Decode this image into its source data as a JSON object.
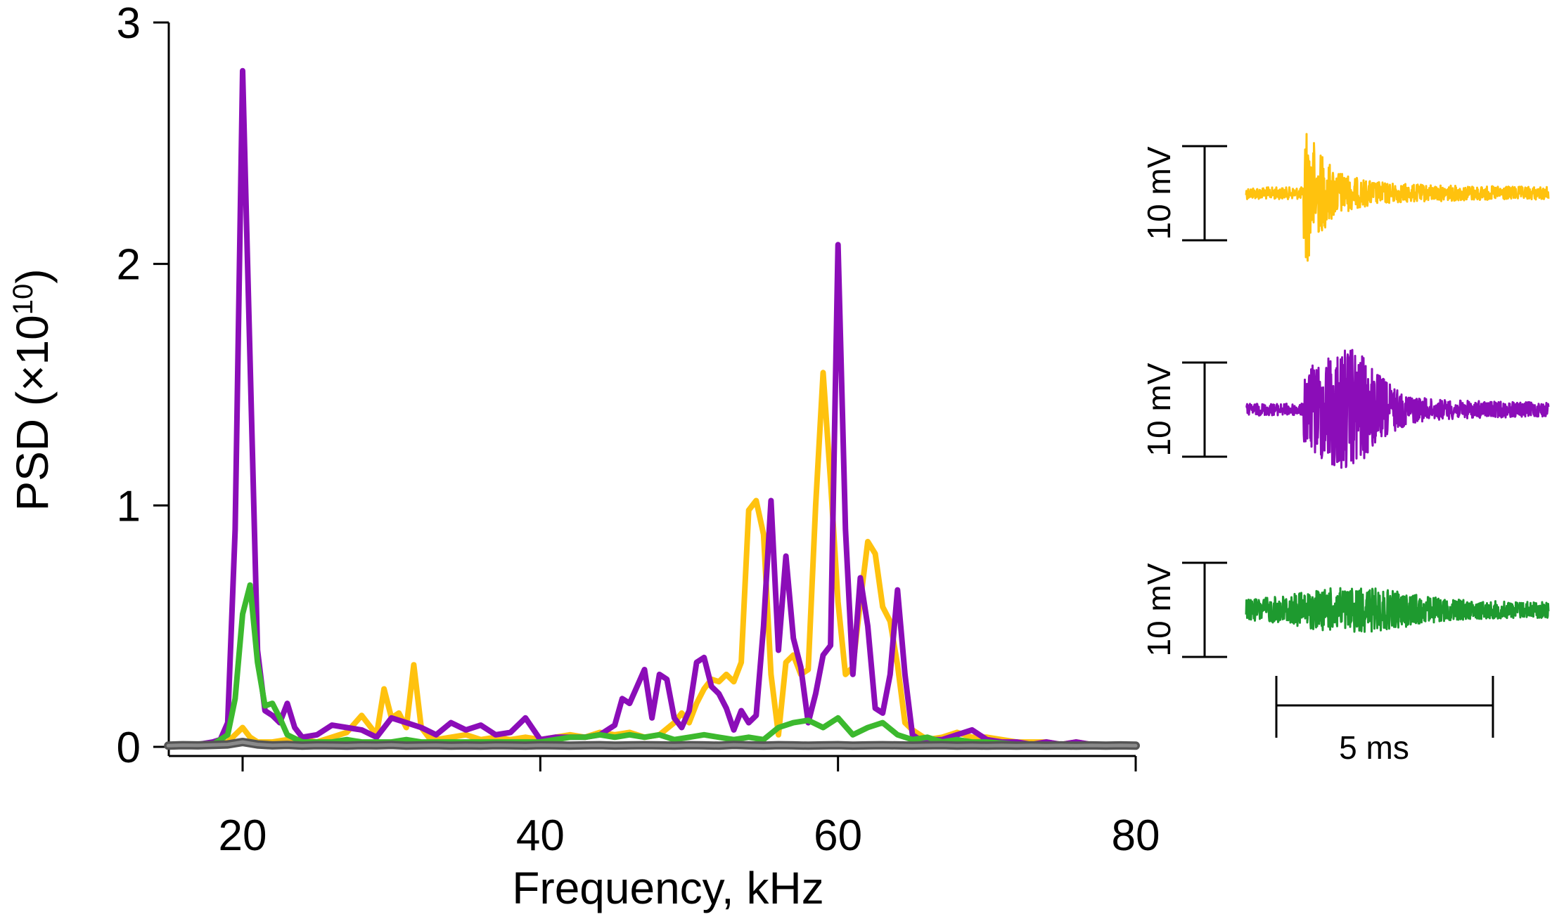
{
  "chart_data": {
    "type": "line",
    "ylabel_main": "PSD (×10",
    "ylabel_exp": "10",
    "ylabel_close": ")",
    "xlabel": "Frequency, kHz",
    "xlim": [
      15,
      80
    ],
    "ylim": [
      0,
      3
    ],
    "xticks": [
      "20",
      "40",
      "60",
      "80"
    ],
    "yticks": [
      "0",
      "1",
      "2",
      "3"
    ],
    "series": [
      {
        "color": "#8B0DB8",
        "x": [
          15,
          16,
          17,
          18,
          18.5,
          19,
          19.5,
          20,
          20.5,
          21,
          21.5,
          22,
          22.5,
          23,
          23.5,
          24,
          25,
          26,
          27,
          28,
          29,
          30,
          31,
          32,
          33,
          34,
          35,
          36,
          37,
          38,
          39,
          40,
          41,
          42,
          43,
          44,
          45,
          45.5,
          46,
          46.5,
          47,
          47.5,
          48,
          48.5,
          49,
          49.5,
          50,
          50.5,
          51,
          51.5,
          52,
          52.5,
          53,
          53.5,
          54,
          54.5,
          55,
          55.5,
          56,
          56.5,
          57,
          57.5,
          58,
          58.5,
          59,
          59.5,
          60,
          60.5,
          61,
          61.5,
          62,
          62.5,
          63,
          63.5,
          64,
          64.5,
          65,
          65.5,
          66,
          67,
          68,
          69,
          70,
          71,
          72,
          73,
          74,
          75,
          76,
          77,
          78,
          79,
          80
        ],
        "y": [
          0.01,
          0.01,
          0.01,
          0.02,
          0.03,
          0.1,
          0.9,
          2.8,
          1.6,
          0.4,
          0.15,
          0.13,
          0.1,
          0.18,
          0.08,
          0.04,
          0.05,
          0.09,
          0.08,
          0.07,
          0.04,
          0.12,
          0.1,
          0.08,
          0.05,
          0.1,
          0.07,
          0.09,
          0.05,
          0.06,
          0.12,
          0.03,
          0.04,
          0.04,
          0.04,
          0.05,
          0.09,
          0.2,
          0.18,
          0.25,
          0.32,
          0.12,
          0.3,
          0.28,
          0.12,
          0.08,
          0.15,
          0.35,
          0.37,
          0.25,
          0.22,
          0.16,
          0.07,
          0.15,
          0.1,
          0.13,
          0.5,
          1.02,
          0.4,
          0.79,
          0.45,
          0.33,
          0.1,
          0.22,
          0.38,
          0.42,
          2.08,
          0.9,
          0.3,
          0.7,
          0.5,
          0.16,
          0.14,
          0.3,
          0.65,
          0.3,
          0.05,
          0.03,
          0.03,
          0.03,
          0.05,
          0.07,
          0.03,
          0.02,
          0.02,
          0.01,
          0.02,
          0.01,
          0.02,
          0.01,
          0.01,
          0.01,
          0.01
        ]
      },
      {
        "color": "#FFC20E",
        "x": [
          15,
          17,
          19,
          19.5,
          20,
          20.5,
          21,
          22,
          23,
          24,
          25,
          26,
          27,
          28,
          29,
          29.5,
          30,
          30.5,
          31,
          31.5,
          32,
          32.5,
          33,
          34,
          35,
          36,
          37,
          38,
          39,
          40,
          41,
          42,
          43,
          44,
          45,
          46,
          47,
          48,
          49,
          49.5,
          50,
          50.5,
          51,
          51.5,
          52,
          52.5,
          53,
          53.5,
          54,
          54.5,
          55,
          55.5,
          56,
          56.5,
          57,
          57.5,
          58,
          58.5,
          59,
          59.5,
          60,
          60.5,
          61,
          61.5,
          62,
          62.5,
          63,
          63.5,
          64,
          64.5,
          65,
          65.5,
          66,
          67,
          68,
          69,
          70,
          71,
          72,
          73,
          74,
          75,
          76,
          77,
          78,
          79,
          80
        ],
        "y": [
          0.01,
          0.01,
          0.02,
          0.05,
          0.08,
          0.04,
          0.02,
          0.02,
          0.03,
          0.03,
          0.02,
          0.04,
          0.06,
          0.13,
          0.05,
          0.24,
          0.12,
          0.14,
          0.08,
          0.34,
          0.08,
          0.04,
          0.03,
          0.04,
          0.05,
          0.03,
          0.04,
          0.03,
          0.04,
          0.03,
          0.04,
          0.05,
          0.04,
          0.06,
          0.05,
          0.06,
          0.04,
          0.05,
          0.1,
          0.14,
          0.1,
          0.18,
          0.24,
          0.28,
          0.27,
          0.3,
          0.27,
          0.35,
          0.98,
          1.02,
          0.88,
          0.3,
          0.05,
          0.35,
          0.38,
          0.3,
          0.32,
          1.0,
          1.55,
          1.1,
          0.6,
          0.3,
          0.33,
          0.6,
          0.85,
          0.8,
          0.58,
          0.52,
          0.34,
          0.1,
          0.07,
          0.05,
          0.03,
          0.04,
          0.06,
          0.04,
          0.04,
          0.03,
          0.02,
          0.02,
          0.02,
          0.01,
          0.02,
          0.01,
          0.01,
          0.01,
          0.01
        ]
      },
      {
        "color": "#3CB92E",
        "x": [
          15,
          17,
          18,
          19,
          19.5,
          20,
          20.5,
          21,
          21.5,
          22,
          22.5,
          23,
          24,
          25,
          26,
          27,
          28,
          29,
          30,
          31,
          32,
          33,
          34,
          35,
          36,
          37,
          38,
          39,
          40,
          41,
          42,
          43,
          44,
          45,
          46,
          47,
          48,
          49,
          50,
          51,
          52,
          53,
          54,
          55,
          56,
          57,
          58,
          59,
          60,
          61,
          62,
          63,
          64,
          65,
          66,
          67,
          68,
          69,
          70,
          72,
          74,
          76,
          78,
          80
        ],
        "y": [
          0.0,
          0.01,
          0.01,
          0.05,
          0.2,
          0.55,
          0.67,
          0.35,
          0.17,
          0.18,
          0.12,
          0.05,
          0.02,
          0.02,
          0.02,
          0.03,
          0.02,
          0.02,
          0.02,
          0.03,
          0.02,
          0.02,
          0.02,
          0.02,
          0.02,
          0.02,
          0.02,
          0.02,
          0.02,
          0.03,
          0.04,
          0.04,
          0.05,
          0.04,
          0.05,
          0.04,
          0.05,
          0.03,
          0.04,
          0.05,
          0.04,
          0.03,
          0.04,
          0.03,
          0.08,
          0.1,
          0.11,
          0.08,
          0.12,
          0.05,
          0.08,
          0.1,
          0.05,
          0.03,
          0.04,
          0.02,
          0.03,
          0.02,
          0.02,
          0.01,
          0.01,
          0.01,
          0.01,
          0.01
        ]
      },
      {
        "color": "#555555",
        "x": [
          15,
          16,
          17,
          18,
          19,
          20,
          21,
          22,
          23,
          24,
          25,
          26,
          27,
          28,
          29,
          30,
          31,
          32,
          33,
          34,
          35,
          36,
          37,
          38,
          39,
          40,
          41,
          42,
          43,
          44,
          45,
          46,
          47,
          48,
          49,
          50,
          51,
          52,
          53,
          54,
          55,
          56,
          57,
          58,
          59,
          60,
          61,
          62,
          63,
          64,
          65,
          66,
          67,
          68,
          69,
          70,
          71,
          72,
          73,
          74,
          75,
          76,
          77,
          78,
          79,
          80
        ],
        "y": [
          0.005,
          0.007,
          0.006,
          0.008,
          0.01,
          0.02,
          0.01,
          0.006,
          0.008,
          0.005,
          0.007,
          0.006,
          0.005,
          0.007,
          0.006,
          0.008,
          0.005,
          0.006,
          0.007,
          0.005,
          0.006,
          0.005,
          0.007,
          0.006,
          0.005,
          0.007,
          0.006,
          0.005,
          0.006,
          0.007,
          0.005,
          0.006,
          0.007,
          0.006,
          0.005,
          0.007,
          0.006,
          0.005,
          0.008,
          0.006,
          0.005,
          0.007,
          0.006,
          0.005,
          0.006,
          0.007,
          0.005,
          0.006,
          0.007,
          0.006,
          0.005,
          0.006,
          0.007,
          0.005,
          0.006,
          0.005,
          0.006,
          0.005,
          0.006,
          0.005,
          0.006,
          0.005,
          0.006,
          0.005,
          0.006,
          0.005
        ]
      }
    ]
  },
  "traces": [
    {
      "color": "#FFC20E",
      "scale_label": "10 mV",
      "onset": 0.19,
      "peak": 0.55,
      "noise": 0.05,
      "envelope": "fast"
    },
    {
      "color": "#8B0DB8",
      "scale_label": "10 mV",
      "onset": 0.19,
      "peak": 0.38,
      "noise": 0.05,
      "envelope": "broad"
    },
    {
      "color": "#1E9A2F",
      "scale_label": "10 mV",
      "onset": 0.0,
      "peak": 0.12,
      "noise": 0.07,
      "envelope": "flat"
    }
  ],
  "time_scale_label": "5 ms"
}
